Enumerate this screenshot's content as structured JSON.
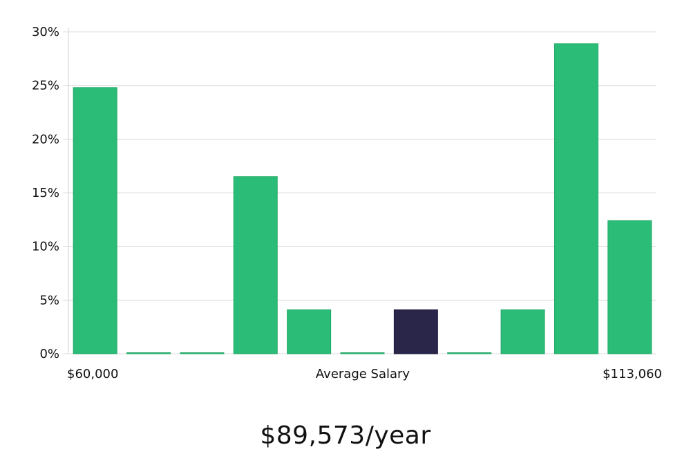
{
  "chart_data": {
    "type": "bar",
    "ylim": [
      0,
      30
    ],
    "y_ticks": [
      "0%",
      "5%",
      "10%",
      "15%",
      "20%",
      "25%",
      "30%"
    ],
    "y_tick_values": [
      0,
      5,
      10,
      15,
      20,
      25,
      30
    ],
    "values": [
      24.8,
      0,
      0,
      16.5,
      4.1,
      0,
      4.1,
      0,
      4.1,
      28.9,
      12.4
    ],
    "highlight_index": 6,
    "x_left_label": "$60,000",
    "x_center_label": "Average Salary",
    "x_right_label": "$113,060",
    "grid": true,
    "colors": {
      "bar": "#2bbd77",
      "highlight": "#29264a"
    }
  },
  "headline": "$89,573/year"
}
